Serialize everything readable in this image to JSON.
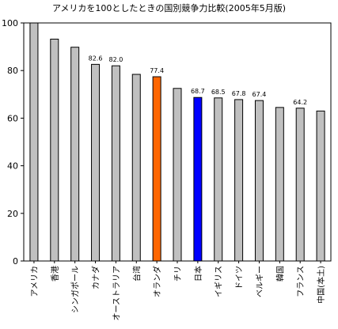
{
  "chart_data": {
    "type": "bar",
    "title": "アメリカを100としたときの国別競争力比較(2005年5月版)",
    "xlabel": "",
    "ylabel": "",
    "ylim": [
      0,
      100
    ],
    "yticks": [
      "0",
      "20",
      "40",
      "60",
      "80",
      "100"
    ],
    "grid": false,
    "legend": "none",
    "categories": [
      "アメリカ",
      "香港",
      "シンガポール",
      "カナダ",
      "オーストラリア",
      "台湾",
      "オランダ",
      "チリ",
      "日本",
      "イギリス",
      "ドイツ",
      "ベルギー",
      "韓国",
      "フランス",
      "中国(本土)"
    ],
    "values": [
      100,
      93.2,
      89.8,
      82.6,
      82.0,
      78.4,
      77.4,
      72.5,
      68.7,
      68.5,
      67.8,
      67.4,
      64.5,
      64.2,
      63.0
    ],
    "data_labels": [
      "",
      "",
      "",
      "82.6",
      "82.0",
      "",
      "77.4",
      "",
      "68.7",
      "68.5",
      "67.8",
      "67.4",
      "",
      "64.2",
      ""
    ],
    "colors": {
      "default": "#c0c0c0",
      "オランダ": "#ff6600",
      "日本": "#0000ff",
      "outline": "#000000"
    }
  }
}
